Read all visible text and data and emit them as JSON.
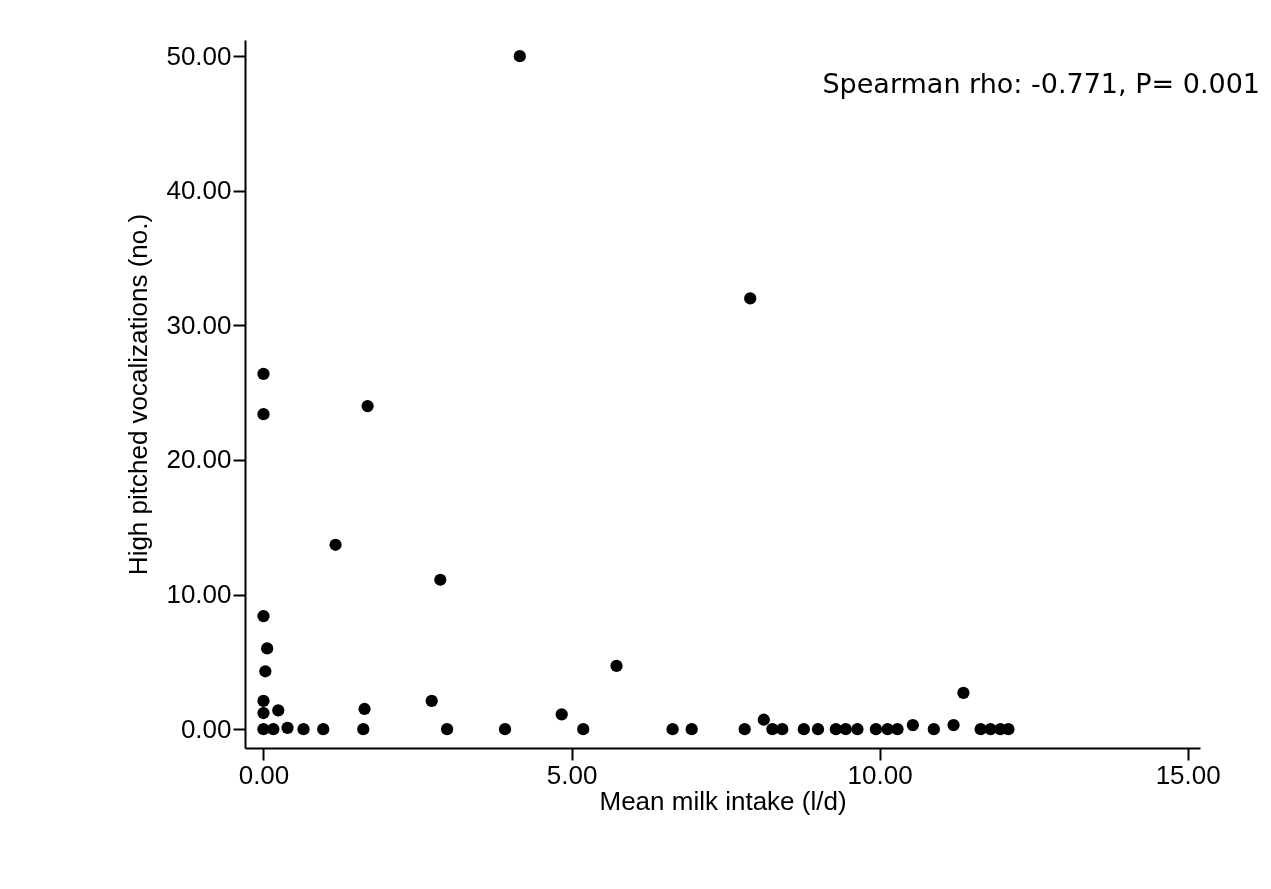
{
  "chart_data": {
    "type": "scatter",
    "xlabel": "Mean milk intake (l/d)",
    "ylabel": "High pitched vocalizations (no.)",
    "annotations": [
      "Spearman rho: -0.771, P= 0.001"
    ],
    "x": [
      4.16,
      7.9,
      0,
      0,
      1.69,
      1.17,
      2.87,
      0,
      0.06,
      0.03,
      5.73,
      0,
      0.24,
      0,
      0,
      0.16,
      0.39,
      0.65,
      0.97,
      1.64,
      1.62,
      2.73,
      2.98,
      3.92,
      4.84,
      5.19,
      6.64,
      6.95,
      7.81,
      8.12,
      8.26,
      8.42,
      8.77,
      9.0,
      9.29,
      9.45,
      9.64,
      9.94,
      10.13,
      10.29,
      10.54,
      10.88,
      11.2,
      11.36,
      11.64,
      11.8,
      11.96,
      12.09
    ],
    "values": [
      50,
      32,
      26.4,
      23.4,
      24,
      13.7,
      11.1,
      8.4,
      6,
      4.3,
      4.7,
      2.1,
      1.4,
      1.2,
      0,
      0,
      0.1,
      0,
      0,
      1.5,
      0,
      2.1,
      0,
      0,
      1.1,
      0,
      0,
      0,
      0,
      0.7,
      0,
      0,
      0,
      0,
      0,
      0,
      0,
      0,
      0,
      0,
      0.3,
      0,
      0.3,
      2.7,
      0,
      0,
      0,
      0
    ],
    "color": "#000000",
    "marker": "circle",
    "grid": false,
    "xlim": [
      -0.3,
      15.2
    ],
    "xticks": [
      {
        "value": 0,
        "label": "0.00"
      },
      {
        "value": 5,
        "label": "5.00"
      },
      {
        "value": 10,
        "label": "10.00"
      },
      {
        "value": 15,
        "label": "15.00"
      }
    ],
    "ylim": [
      -1.4,
      51.2
    ],
    "yticks": [
      {
        "value": 0,
        "label": "0.00"
      },
      {
        "value": 10,
        "label": "10.00"
      },
      {
        "value": 20,
        "label": "20.00"
      },
      {
        "value": 30,
        "label": "30.00"
      },
      {
        "value": 40,
        "label": "40.00"
      },
      {
        "value": 50,
        "label": "50.00"
      }
    ]
  }
}
